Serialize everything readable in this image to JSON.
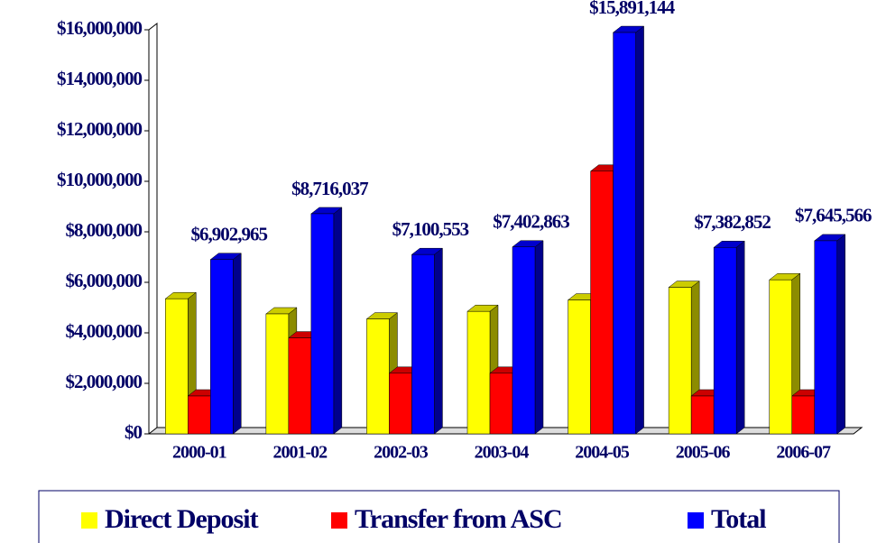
{
  "chart_data": {
    "type": "bar3d",
    "categories": [
      "2000-01",
      "2001-02",
      "2002-03",
      "2003-04",
      "2004-05",
      "2005-06",
      "2006-07"
    ],
    "series": [
      {
        "name": "Direct Deposit",
        "color": "#ffff00",
        "values": [
          5350000,
          4750000,
          4550000,
          4850000,
          5300000,
          5800000,
          6100000
        ]
      },
      {
        "name": "Transfer from ASC",
        "color": "#ff0000",
        "values": [
          1500000,
          3800000,
          2400000,
          2400000,
          10400000,
          1500000,
          1500000
        ]
      },
      {
        "name": "Total",
        "color": "#0000ff",
        "values": [
          6902965,
          8716037,
          7100553,
          7402863,
          15891144,
          7382852,
          7645566
        ],
        "value_labels": [
          "$6,902,965",
          "$8,716,037",
          "$7,100,553",
          "$7,402,863",
          "$15,891,144",
          "$7,382,852",
          "$7,645,566"
        ]
      }
    ],
    "ylim": [
      0,
      16000000
    ],
    "yticks": [
      {
        "value": 0,
        "label": "$0"
      },
      {
        "value": 2000000,
        "label": "$2,000,000"
      },
      {
        "value": 4000000,
        "label": "$4,000,000"
      },
      {
        "value": 6000000,
        "label": "$6,000,000"
      },
      {
        "value": 8000000,
        "label": "$8,000,000"
      },
      {
        "value": 10000000,
        "label": "$10,000,000"
      },
      {
        "value": 12000000,
        "label": "$12,000,000"
      },
      {
        "value": 14000000,
        "label": "$14,000,000"
      },
      {
        "value": 16000000,
        "label": "$16,000,000"
      }
    ],
    "grid": false,
    "legend": "bottom"
  }
}
